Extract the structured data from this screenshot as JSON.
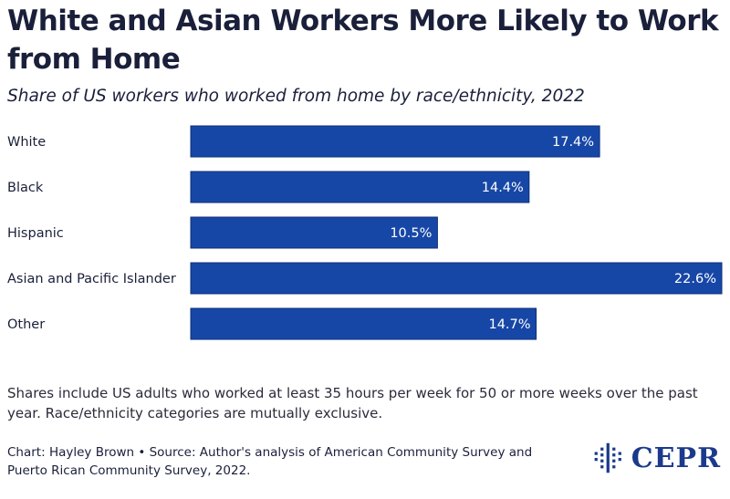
{
  "title": "White and Asian Workers More Likely to Work from Home",
  "subtitle": "Share of US workers who worked from home by race/ethnicity, 2022",
  "note": "Shares include US adults who worked at least 35 hours per week for 50 or more weeks over the past year. Race/ethnicity categories are mutually exclusive.",
  "credit": "Chart: Hayley Brown • Source: Author's analysis of American Community Survey and Puerto Rican Community Survey, 2022.",
  "logo_text": "CEPR",
  "colors": {
    "bar": "#1747a6",
    "bar_edge": "#0e2f78",
    "label_text": "#ffffff",
    "text": "#1a1f3a"
  },
  "chart_data": {
    "type": "bar",
    "orientation": "horizontal",
    "categories": [
      "White",
      "Black",
      "Hispanic",
      "Asian and Pacific Islander",
      "Other"
    ],
    "values": [
      17.4,
      14.4,
      10.5,
      22.6,
      14.7
    ],
    "value_labels": [
      "17.4%",
      "14.4%",
      "10.5%",
      "22.6%",
      "14.7%"
    ],
    "unit": "%",
    "xlim": [
      0,
      22.6
    ],
    "grid": false,
    "legend": "none"
  }
}
